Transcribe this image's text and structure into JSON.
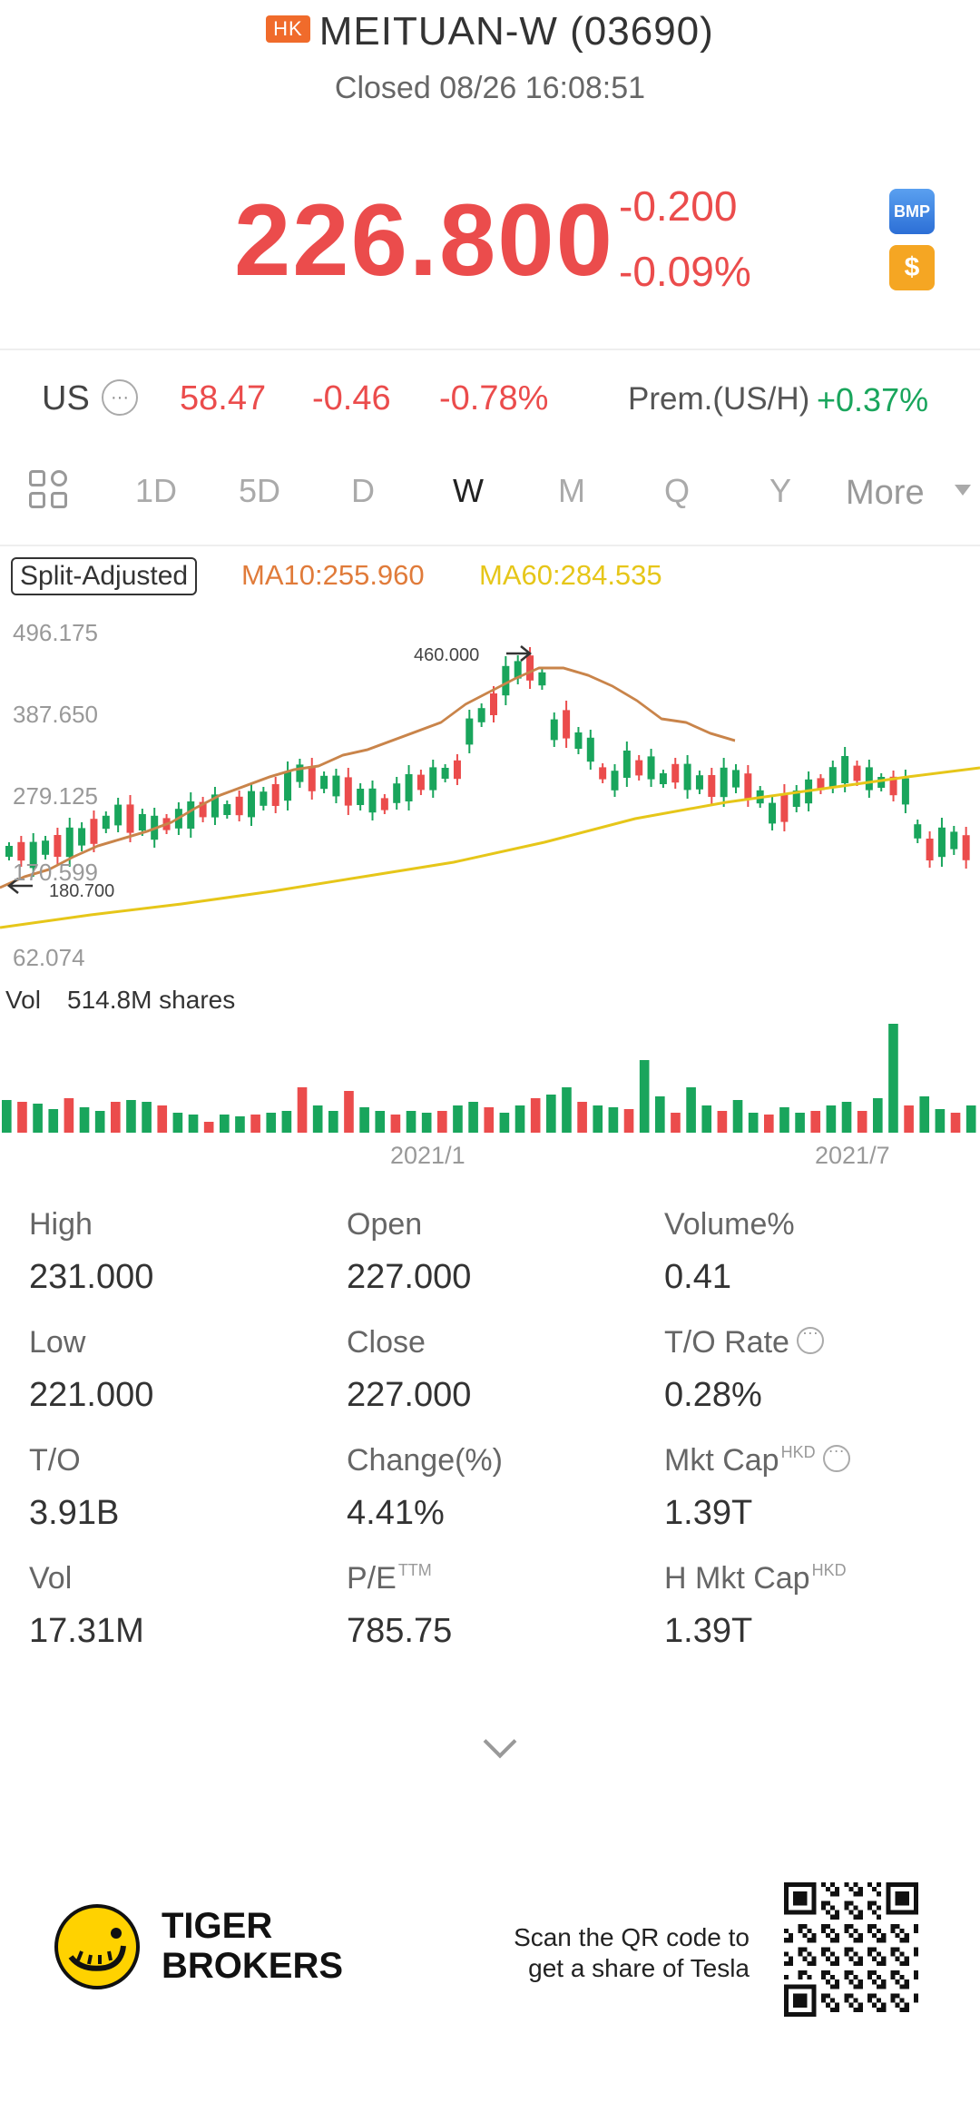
{
  "header": {
    "market_badge": "HK",
    "title": "MEITUAN-W (03690)",
    "status": "Closed 08/26 16:08:51"
  },
  "quote": {
    "price": "226.800",
    "change": "-0.200",
    "change_pct": "-0.09%",
    "bmp_label": "BMP",
    "dollar_label": "$"
  },
  "us_row": {
    "label": "US",
    "price": "58.47",
    "change": "-0.46",
    "change_pct": "-0.78%",
    "prem_label": "Prem.(US/H)",
    "prem_value": "+0.37%"
  },
  "tabs": [
    {
      "label": "1D"
    },
    {
      "label": "5D"
    },
    {
      "label": "D"
    },
    {
      "label": "W",
      "active": true
    },
    {
      "label": "M"
    },
    {
      "label": "Q"
    },
    {
      "label": "Y"
    }
  ],
  "tabs_more": "More",
  "chart": {
    "split_adjusted": "Split-Adjusted",
    "ma10": "MA10:255.960",
    "ma60": "MA60:284.535",
    "y_labels": [
      "496.175",
      "387.650",
      "279.125",
      "170.599",
      "62.074"
    ],
    "high_marker": "460.000",
    "low_marker": "180.700",
    "vol_label": "Vol",
    "vol_value": "514.8M shares",
    "x_labels": [
      "2021/1",
      "2021/7"
    ],
    "colors": {
      "up": "#19a55c",
      "down": "#eb4c4c",
      "ma10": "#c9844a",
      "ma60": "#e6c619"
    }
  },
  "stats": [
    {
      "label": "High",
      "value": "231.000"
    },
    {
      "label": "Open",
      "value": "227.000"
    },
    {
      "label": "Volume%",
      "value": "0.41"
    },
    {
      "label": "Low",
      "value": "221.000"
    },
    {
      "label": "Close",
      "value": "227.000"
    },
    {
      "label": "T/O Rate",
      "value": "0.28%",
      "info": true
    },
    {
      "label": "T/O",
      "value": "3.91B"
    },
    {
      "label": "Change(%)",
      "value": "4.41%"
    },
    {
      "label": "Mkt Cap",
      "sup": "HKD",
      "value": "1.39T",
      "info": true
    },
    {
      "label": "Vol",
      "value": "17.31M"
    },
    {
      "label": "P/E",
      "sup": "TTM",
      "value": "785.75"
    },
    {
      "label": "H Mkt Cap",
      "sup": "HKD",
      "value": "1.39T"
    }
  ],
  "footer": {
    "brand_line1": "TIGER",
    "brand_line2": "BROKERS",
    "qr_line1": "Scan the QR code to",
    "qr_line2": "get a share of Tesla"
  }
}
